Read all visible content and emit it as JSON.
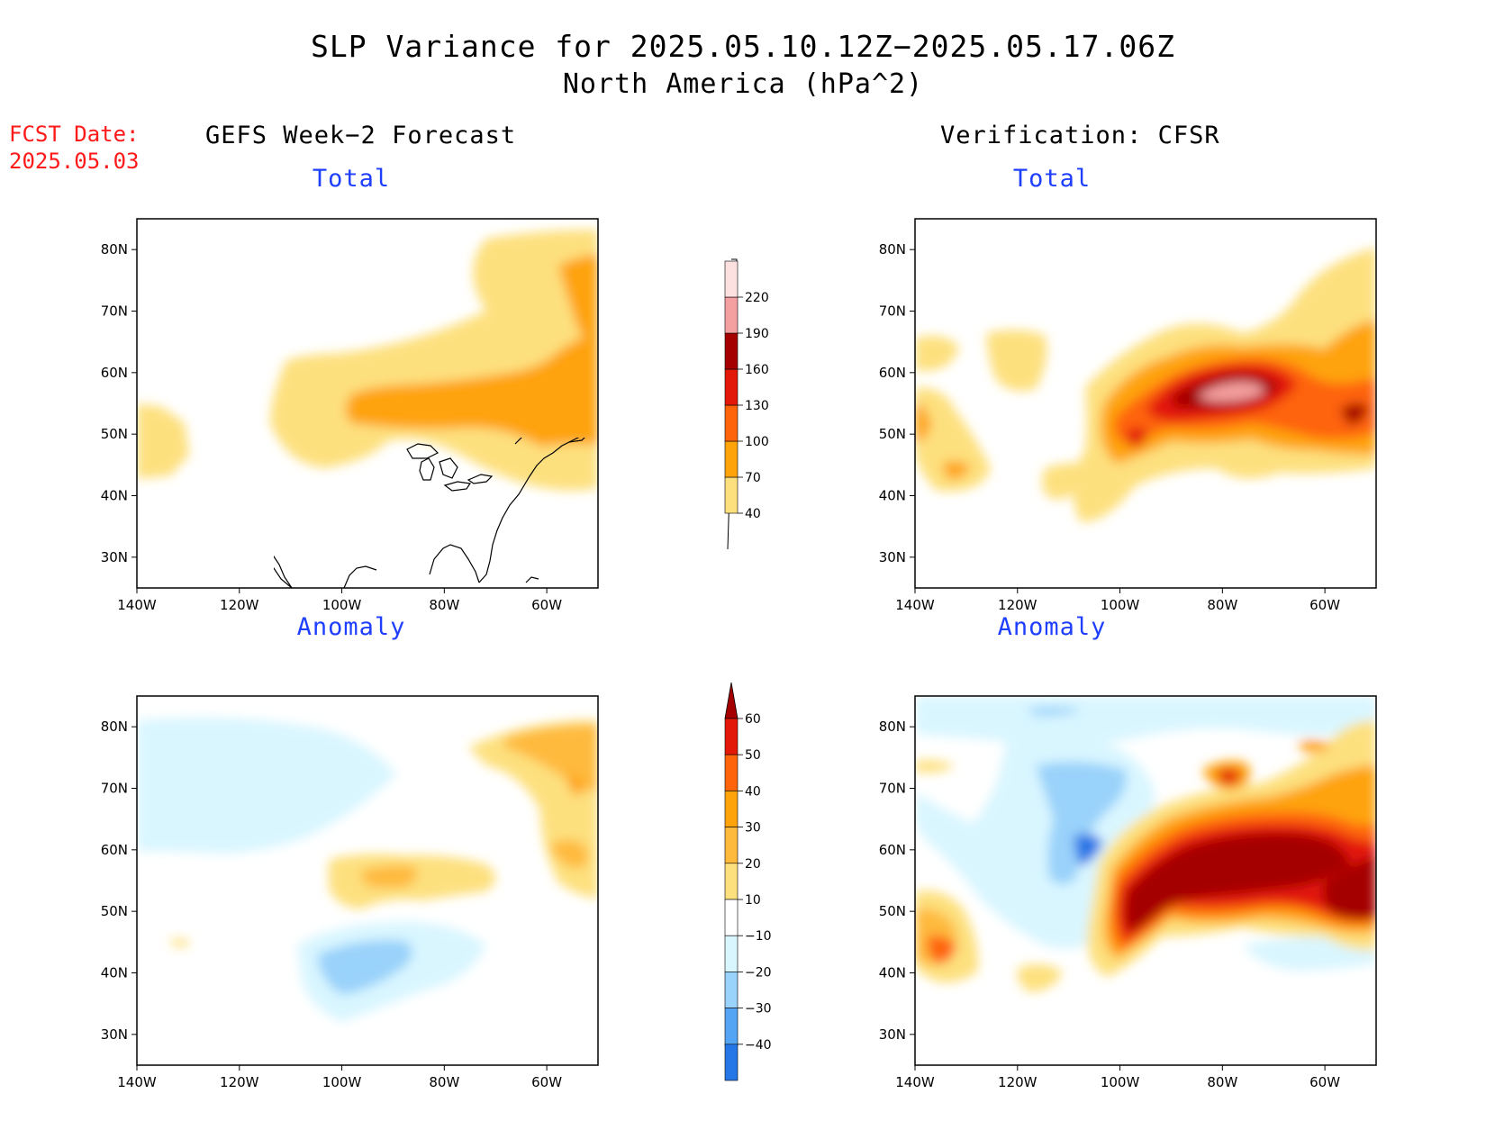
{
  "header": {
    "title": "SLP Variance for 2025.05.10.12Z−2025.05.17.06Z",
    "subtitle": "North America (hPa^2)"
  },
  "fcst": {
    "label": "FCST Date:",
    "date": "2025.05.03"
  },
  "columns": {
    "left": "GEFS Week−2 Forecast",
    "right": "Verification: CFSR"
  },
  "panels": {
    "total": "Total",
    "anomaly": "Anomaly"
  },
  "map": {
    "lon_range": [
      -140,
      -50
    ],
    "lat_range": [
      25,
      85
    ],
    "lon_ticks": [
      "140W",
      "120W",
      "100W",
      "80W",
      "60W"
    ],
    "lat_ticks": [
      "80N",
      "70N",
      "60N",
      "50N",
      "40N",
      "30N"
    ]
  },
  "colorbars": {
    "total": {
      "levels": [
        "40",
        "70",
        "100",
        "130",
        "160",
        "190",
        "220"
      ],
      "colors": [
        "#fde07e",
        "#fea30a",
        "#fe6409",
        "#e21908",
        "#a50000",
        "#f5a0a0",
        "#fde0e0"
      ]
    },
    "anomaly": {
      "levels": [
        "60",
        "50",
        "40",
        "30",
        "20",
        "10",
        "−10",
        "−20",
        "−30",
        "−40"
      ],
      "warm": [
        "#a50000",
        "#e21908",
        "#fe6409",
        "#fea30a",
        "#feba3d",
        "#fde07e"
      ],
      "neutral": "#ffffff",
      "cool": [
        "#d9f6ff",
        "#99d2fa",
        "#55a5f5",
        "#2576e6",
        "#0a52c8"
      ]
    }
  }
}
